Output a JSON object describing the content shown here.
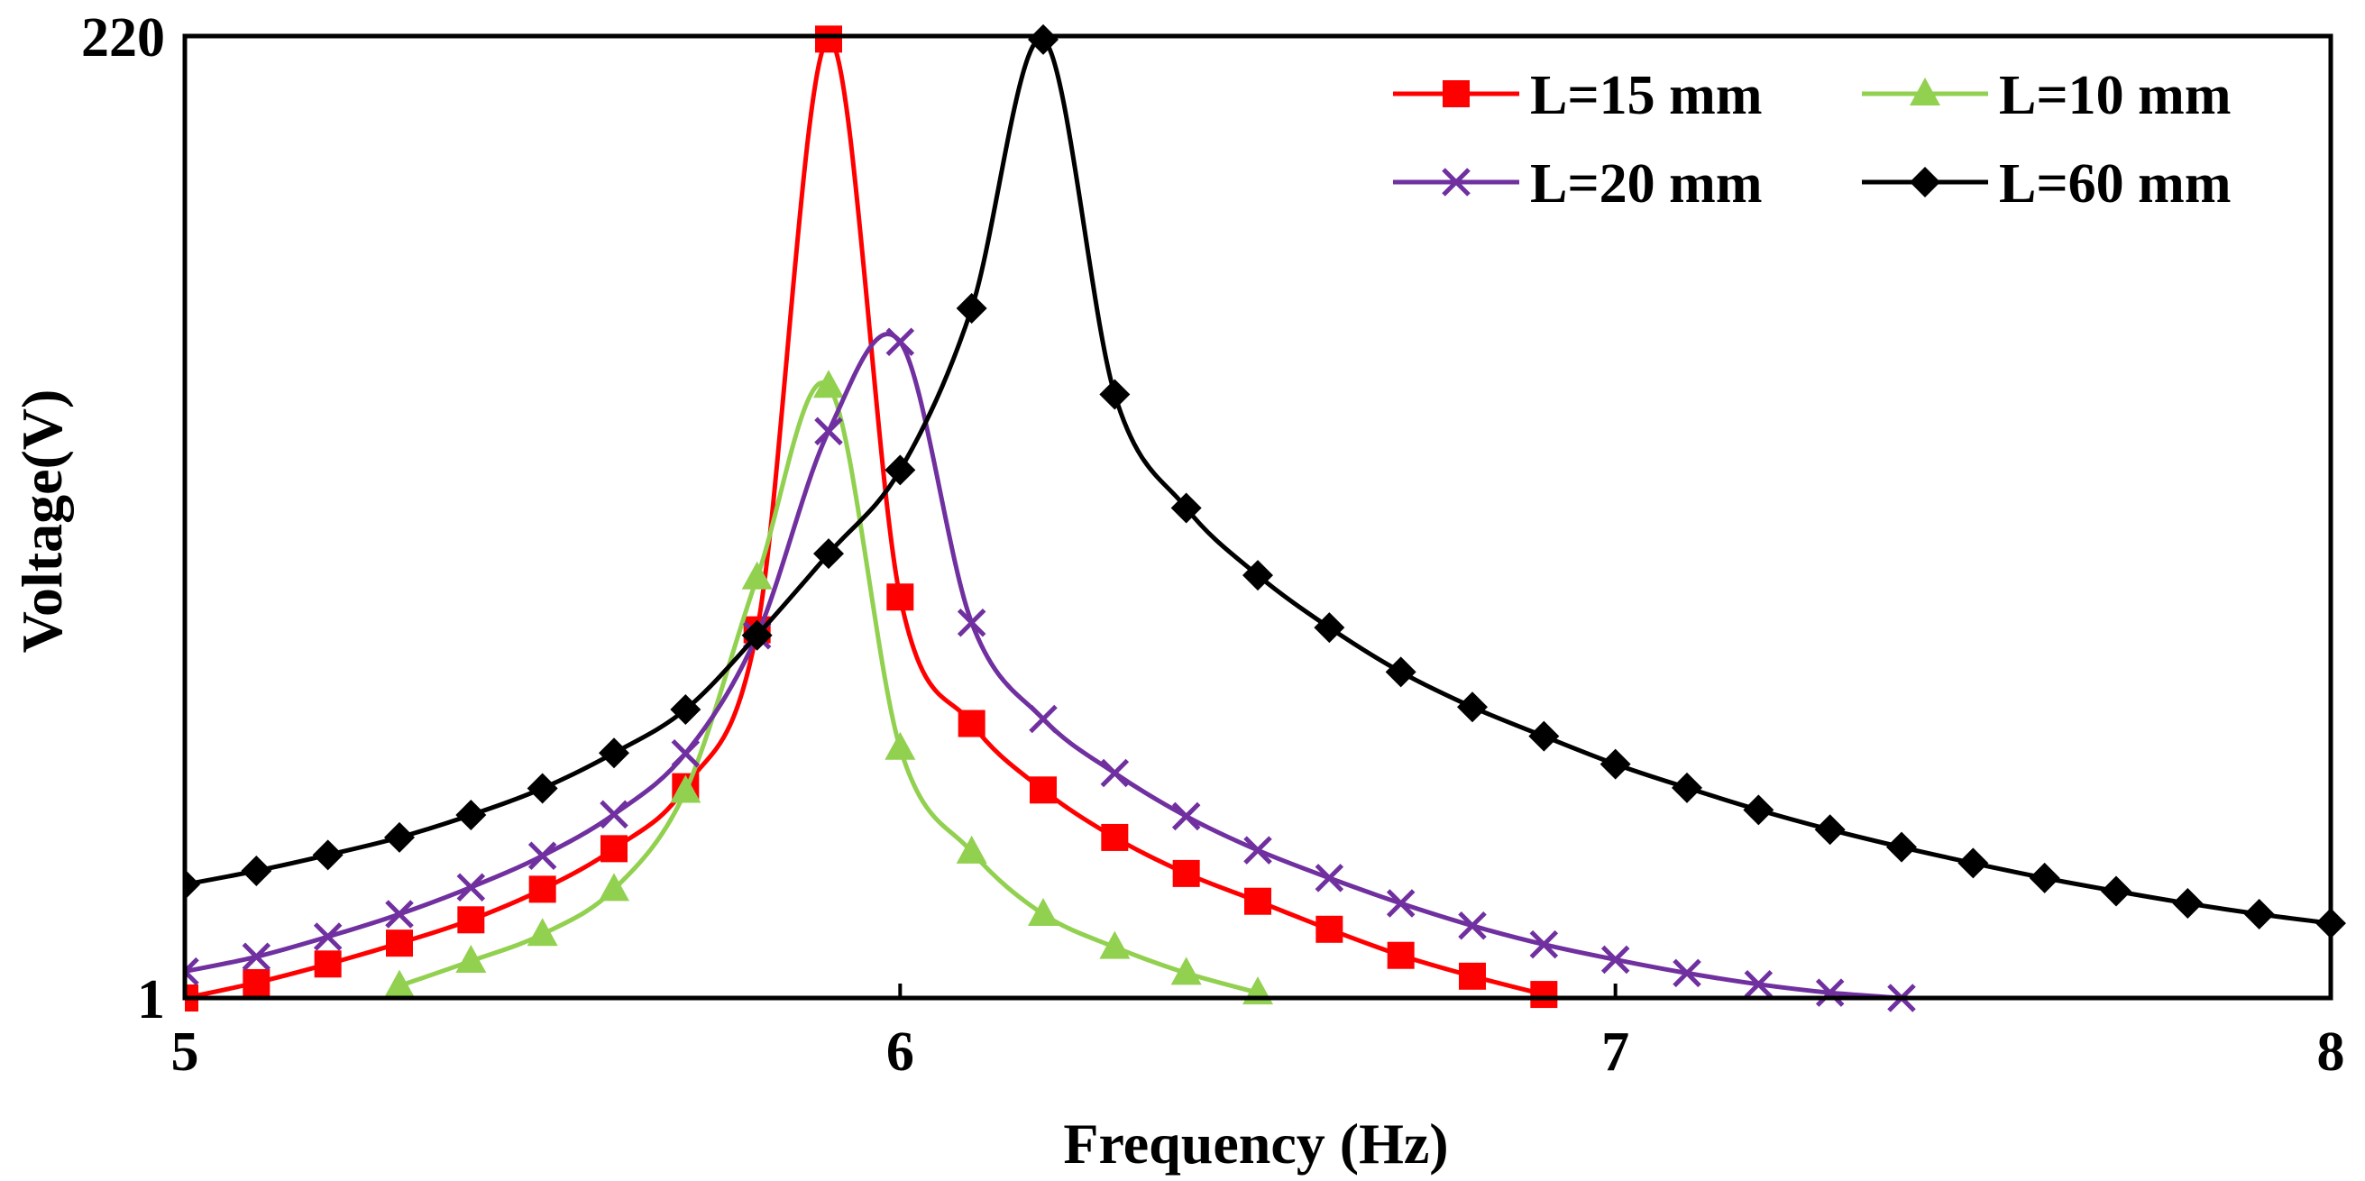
{
  "chart_data": {
    "type": "line",
    "xlabel": "Frequency (Hz)",
    "ylabel": "Voltage(V)",
    "xlim": [
      5,
      8
    ],
    "ylim": [
      1,
      220
    ],
    "y_scale": "log",
    "x_ticks": [
      "5",
      "6",
      "7",
      "8"
    ],
    "y_ticks": [
      "1",
      "220"
    ],
    "grid": false,
    "legend_position": "top-right",
    "series": [
      {
        "name": "L=15 mm",
        "color": "#ff0000",
        "marker": "square",
        "x": [
          5.0,
          5.1,
          5.2,
          5.3,
          5.4,
          5.5,
          5.6,
          5.7,
          5.8,
          5.9,
          6.0,
          6.1,
          6.2,
          6.3,
          6.4,
          6.5,
          6.6,
          6.7,
          6.8,
          6.9
        ],
        "y": [
          1.0,
          1.09,
          1.21,
          1.36,
          1.55,
          1.84,
          2.31,
          3.27,
          7.88,
          216.3,
          9.47,
          4.66,
          3.21,
          2.46,
          2.01,
          1.72,
          1.47,
          1.27,
          1.13,
          1.02
        ]
      },
      {
        "name": "L=10 mm",
        "color": "#92d050",
        "marker": "triangle",
        "x": [
          5.3,
          5.4,
          5.5,
          5.6,
          5.7,
          5.8,
          5.9,
          6.0,
          6.1,
          6.2,
          6.3,
          6.4,
          6.5
        ],
        "y": [
          1.07,
          1.23,
          1.43,
          1.84,
          3.19,
          10.56,
          30.9,
          4.06,
          2.27,
          1.6,
          1.33,
          1.15,
          1.03
        ]
      },
      {
        "name": "L=20 mm",
        "color": "#7030a0",
        "marker": "cross",
        "x": [
          5.0,
          5.1,
          5.2,
          5.3,
          5.4,
          5.5,
          5.6,
          5.7,
          5.8,
          5.9,
          6.0,
          6.1,
          6.2,
          6.3,
          6.4,
          6.5,
          6.6,
          6.7,
          6.8,
          6.9,
          7.0,
          7.1,
          7.2,
          7.3,
          7.4
        ],
        "y": [
          1.16,
          1.26,
          1.41,
          1.6,
          1.86,
          2.22,
          2.8,
          3.94,
          7.64,
          24.0,
          39.6,
          8.2,
          4.78,
          3.53,
          2.77,
          2.29,
          1.96,
          1.7,
          1.5,
          1.35,
          1.24,
          1.15,
          1.08,
          1.03,
          1.0
        ]
      },
      {
        "name": "L=60 mm",
        "color": "#000000",
        "marker": "diamond",
        "x": [
          5.0,
          5.1,
          5.2,
          5.3,
          5.4,
          5.5,
          5.6,
          5.7,
          5.8,
          5.9,
          6.0,
          6.1,
          6.2,
          6.3,
          6.4,
          6.5,
          6.6,
          6.7,
          6.8,
          6.9,
          7.0,
          7.1,
          7.2,
          7.3,
          7.4,
          7.5,
          7.6,
          7.7,
          7.8,
          7.9,
          8.0
        ],
        "y": [
          1.89,
          2.04,
          2.23,
          2.46,
          2.79,
          3.24,
          3.95,
          5.04,
          7.64,
          12.08,
          19.3,
          47.8,
          215.8,
          29.5,
          15.6,
          10.7,
          7.98,
          6.22,
          5.11,
          4.34,
          3.71,
          3.25,
          2.87,
          2.57,
          2.33,
          2.13,
          1.96,
          1.82,
          1.7,
          1.6,
          1.52
        ]
      }
    ]
  }
}
